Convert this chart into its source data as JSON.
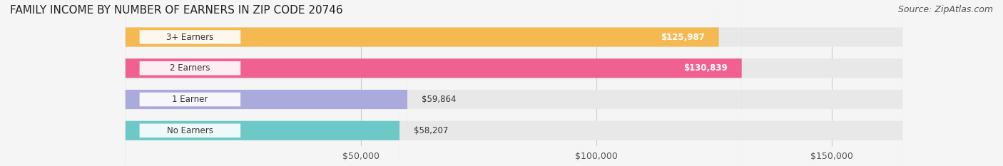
{
  "title": "FAMILY INCOME BY NUMBER OF EARNERS IN ZIP CODE 20746",
  "source": "Source: ZipAtlas.com",
  "categories": [
    "No Earners",
    "1 Earner",
    "2 Earners",
    "3+ Earners"
  ],
  "values": [
    58207,
    59864,
    130839,
    125987
  ],
  "bar_colors": [
    "#6dc8c8",
    "#aaaadd",
    "#f06090",
    "#f5b952"
  ],
  "label_colors": [
    "#333333",
    "#333333",
    "#ffffff",
    "#ffffff"
  ],
  "xlim": [
    0,
    165000
  ],
  "xticks": [
    50000,
    100000,
    150000
  ],
  "xtick_labels": [
    "$50,000",
    "$100,000",
    "$150,000"
  ],
  "background_color": "#f5f5f5",
  "bar_background_color": "#e8e8e8",
  "title_fontsize": 11,
  "source_fontsize": 9
}
